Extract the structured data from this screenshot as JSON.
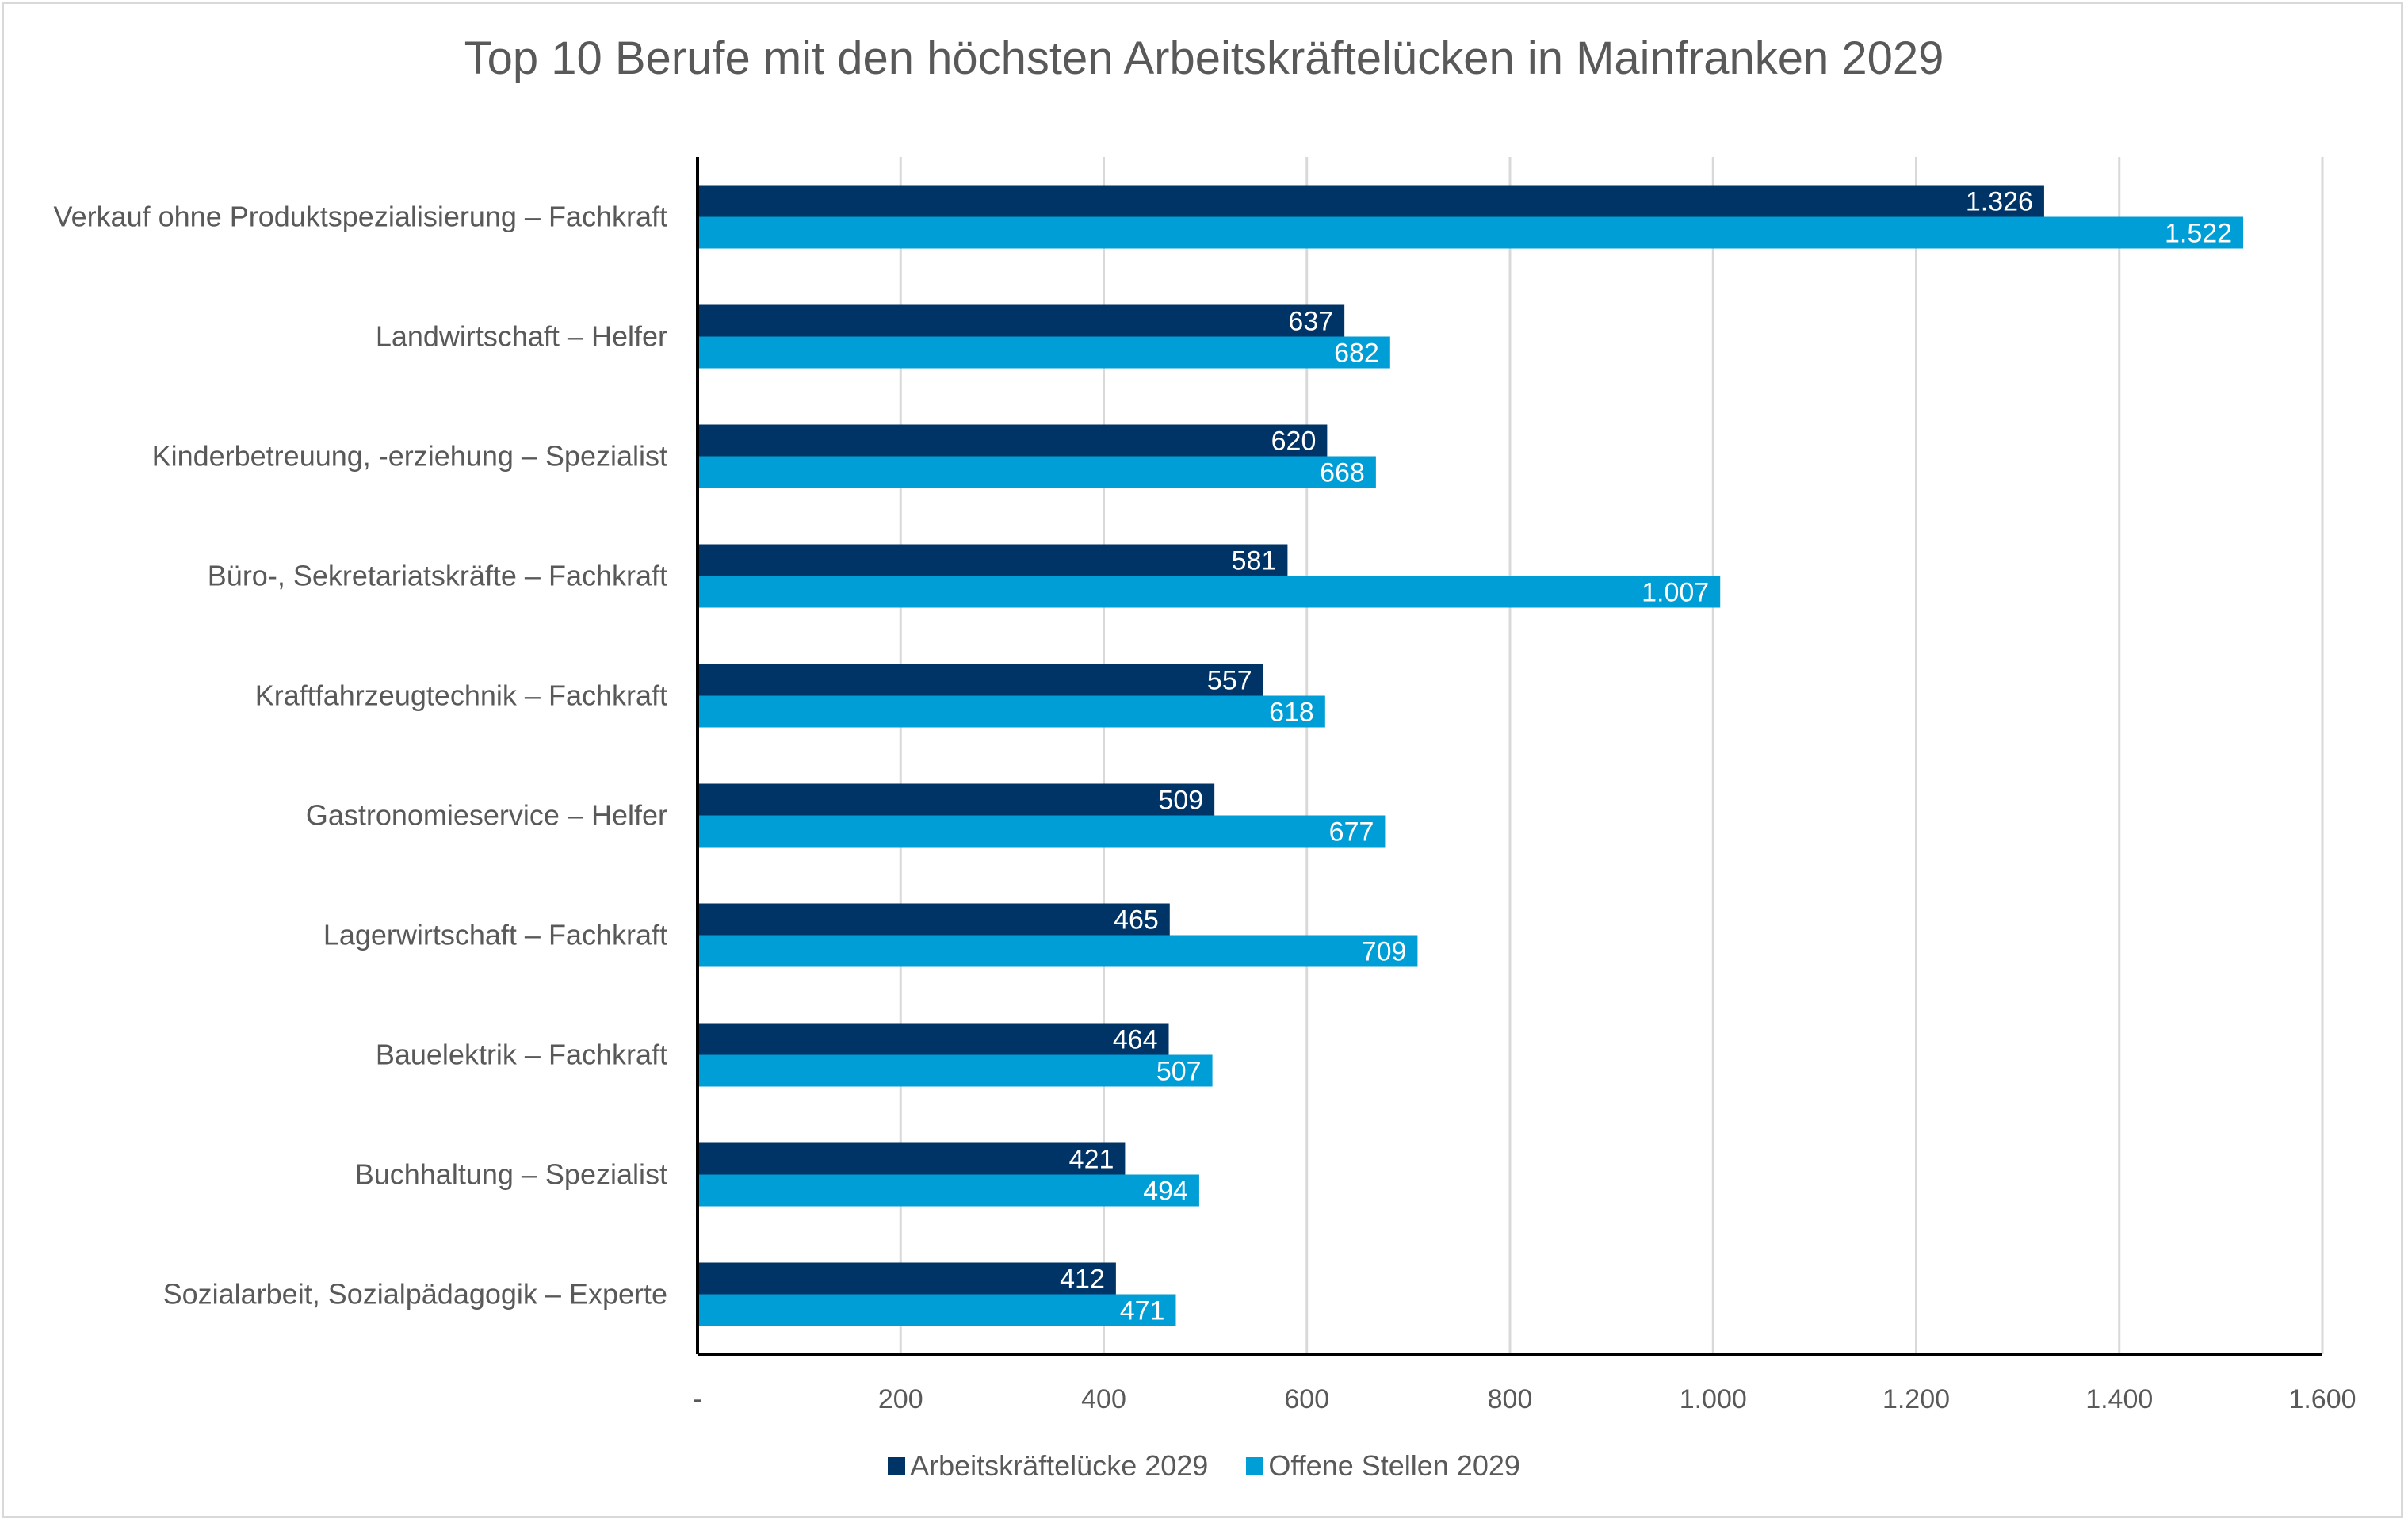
{
  "chart_data": {
    "type": "bar",
    "orientation": "horizontal",
    "title": "Top 10 Berufe mit den höchsten Arbeitskräftelücken in Mainfranken 2029",
    "xlabel": "",
    "ylabel": "",
    "xlim": [
      0,
      1600
    ],
    "x_ticks": [
      0,
      200,
      400,
      600,
      800,
      1000,
      1200,
      1400,
      1600
    ],
    "x_tick_labels": [
      "-",
      "200",
      "400",
      "600",
      "800",
      "1.000",
      "1.200",
      "1.400",
      "1.600"
    ],
    "grid": true,
    "legend_position": "bottom",
    "categories": [
      "Verkauf ohne Produktspezialisierung – Fachkraft",
      "Landwirtschaft – Helfer",
      "Kinderbetreuung, -erziehung – Spezialist",
      "Büro-, Sekretariatskräfte – Fachkraft",
      "Kraftfahrzeugtechnik – Fachkraft",
      "Gastronomieservice – Helfer",
      "Lagerwirtschaft – Fachkraft",
      "Bauelektrik – Fachkraft",
      "Buchhaltung – Spezialist",
      "Sozialarbeit, Sozialpädagogik – Experte"
    ],
    "series": [
      {
        "name": "Arbeitskräftelücke 2029",
        "color": "#003366",
        "values": [
          1326,
          637,
          620,
          581,
          557,
          509,
          465,
          464,
          421,
          412
        ],
        "labels": [
          "1.326",
          "637",
          "620",
          "581",
          "557",
          "509",
          "465",
          "464",
          "421",
          "412"
        ]
      },
      {
        "name": "Offene Stellen 2029",
        "color": "#009ED6",
        "values": [
          1522,
          682,
          668,
          1007,
          618,
          677,
          709,
          507,
          494,
          471
        ],
        "labels": [
          "1.522",
          "682",
          "668",
          "1.007",
          "618",
          "677",
          "709",
          "507",
          "494",
          "471"
        ]
      }
    ]
  }
}
